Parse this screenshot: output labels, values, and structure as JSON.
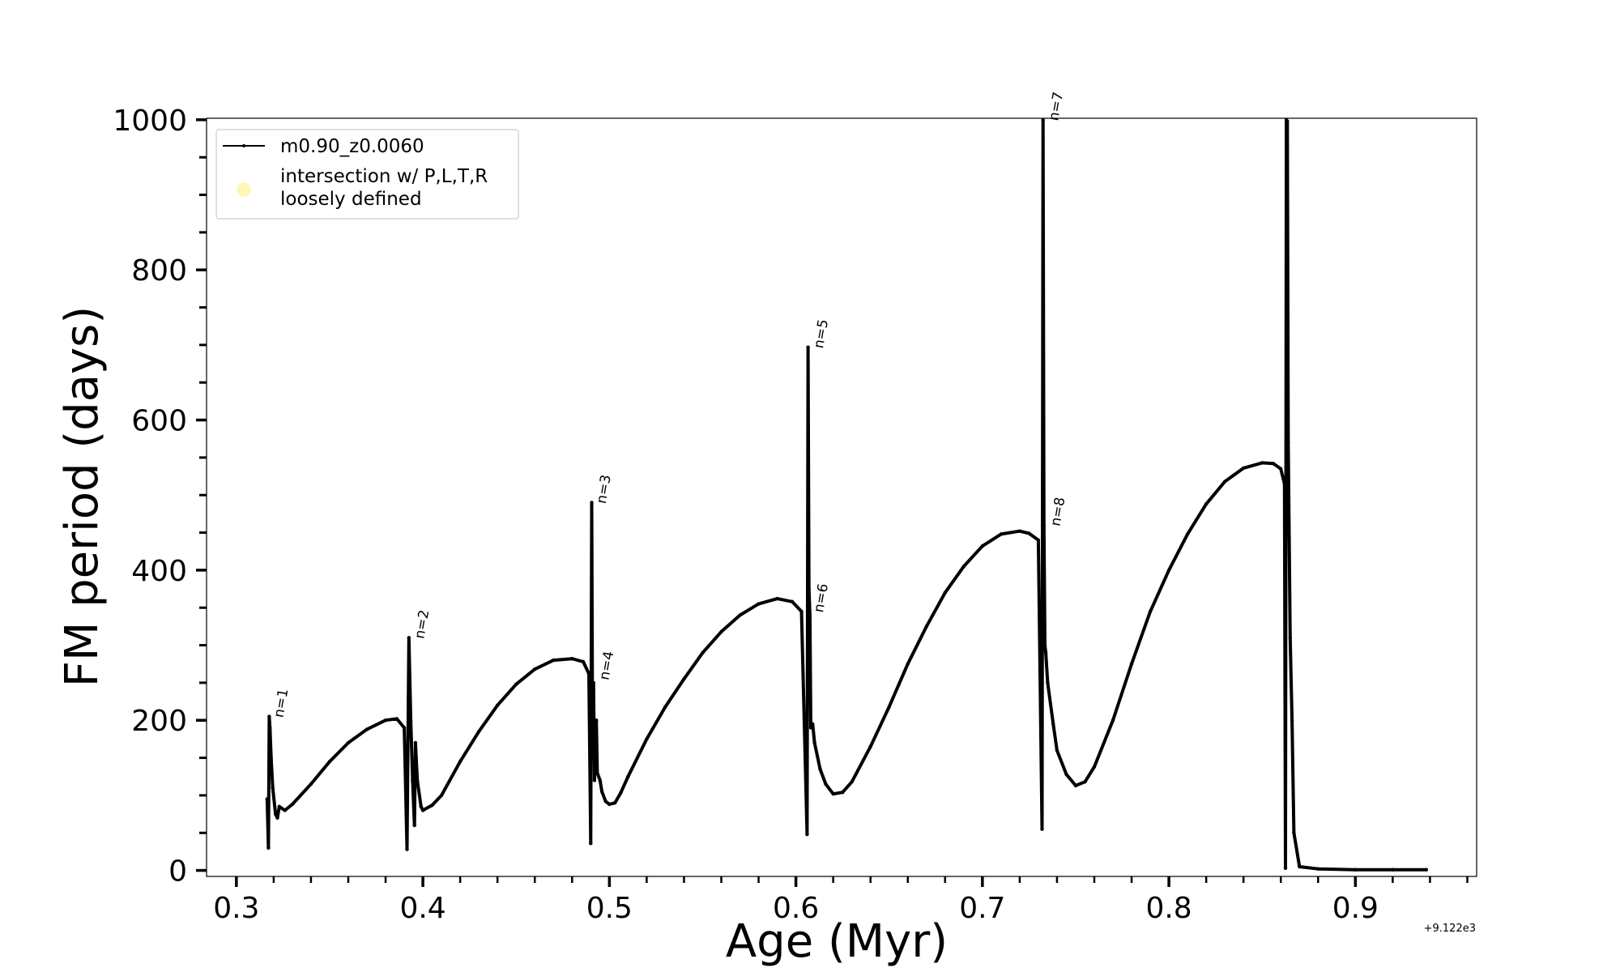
{
  "chart_data": {
    "type": "line",
    "xlabel": "Age (Myr)",
    "ylabel": "FM period (days)",
    "x_offset_label": "+9.122e3",
    "xlim": [
      0.284,
      0.965
    ],
    "ylim": [
      -8,
      1002
    ],
    "x_ticks": [
      0.3,
      0.4,
      0.5,
      0.6,
      0.7,
      0.8,
      0.9
    ],
    "x_tick_labels": [
      "0.3",
      "0.4",
      "0.5",
      "0.6",
      "0.7",
      "0.8",
      "0.9"
    ],
    "y_ticks": [
      0,
      200,
      400,
      600,
      800,
      1000
    ],
    "y_tick_labels": [
      "0",
      "200",
      "400",
      "600",
      "800",
      "1000"
    ],
    "legend_position": "top-left",
    "legend": [
      {
        "label": "m0.90_z0.0060",
        "marker": "line",
        "color": "#000000"
      },
      {
        "label_lines": [
          "intersection w/ P,L,T,R",
          "loosely defined"
        ],
        "marker": "circle",
        "color": "#fff9b8"
      }
    ],
    "series": [
      {
        "name": "m0.90_z0.0060",
        "color": "#000000",
        "x": [
          0.3165,
          0.3172,
          0.3176,
          0.318,
          0.3186,
          0.3195,
          0.321,
          0.322,
          0.323,
          0.326,
          0.33,
          0.34,
          0.35,
          0.36,
          0.37,
          0.38,
          0.386,
          0.39,
          0.3915,
          0.3925,
          0.3935,
          0.3945,
          0.3955,
          0.396,
          0.397,
          0.399,
          0.4,
          0.405,
          0.41,
          0.42,
          0.43,
          0.44,
          0.45,
          0.46,
          0.47,
          0.48,
          0.486,
          0.489,
          0.49,
          0.4905,
          0.491,
          0.4915,
          0.492,
          0.493,
          0.4935,
          0.495,
          0.496,
          0.498,
          0.5,
          0.503,
          0.506,
          0.51,
          0.52,
          0.53,
          0.54,
          0.55,
          0.56,
          0.57,
          0.58,
          0.59,
          0.598,
          0.603,
          0.606,
          0.6065,
          0.607,
          0.6075,
          0.608,
          0.609,
          0.61,
          0.613,
          0.616,
          0.62,
          0.625,
          0.63,
          0.64,
          0.65,
          0.66,
          0.67,
          0.68,
          0.69,
          0.7,
          0.71,
          0.72,
          0.725,
          0.73,
          0.732,
          0.7325,
          0.733,
          0.7335,
          0.734,
          0.735,
          0.738,
          0.74,
          0.745,
          0.75,
          0.755,
          0.76,
          0.77,
          0.78,
          0.79,
          0.8,
          0.81,
          0.82,
          0.83,
          0.84,
          0.85,
          0.856,
          0.86,
          0.862,
          0.8625,
          0.863,
          0.8635,
          0.864,
          0.865,
          0.866,
          0.867,
          0.87,
          0.88,
          0.9,
          0.92,
          0.938
        ],
        "y": [
          95,
          30,
          205,
          190,
          150,
          110,
          75,
          70,
          85,
          80,
          88,
          115,
          145,
          170,
          188,
          200,
          202,
          190,
          28,
          310,
          200,
          120,
          60,
          170,
          120,
          85,
          80,
          87,
          100,
          145,
          185,
          220,
          248,
          268,
          280,
          282,
          278,
          262,
          36,
          490,
          150,
          250,
          120,
          200,
          130,
          120,
          105,
          92,
          88,
          90,
          103,
          125,
          175,
          218,
          255,
          290,
          318,
          340,
          355,
          362,
          358,
          345,
          48,
          697,
          375,
          340,
          190,
          195,
          170,
          135,
          115,
          102,
          104,
          118,
          165,
          218,
          275,
          325,
          370,
          405,
          432,
          448,
          452,
          449,
          440,
          55,
          1000,
          460,
          300,
          290,
          250,
          195,
          160,
          128,
          113,
          118,
          138,
          200,
          275,
          345,
          400,
          448,
          488,
          518,
          536,
          543,
          542,
          535,
          515,
          3,
          1000,
          998,
          570,
          310,
          200,
          50,
          5,
          2,
          1,
          1,
          1
        ]
      }
    ],
    "annotations": [
      {
        "text": "n=1",
        "x": 0.318,
        "y": 205
      },
      {
        "text": "n=2",
        "x": 0.3935,
        "y": 310
      },
      {
        "text": "n=3",
        "x": 0.491,
        "y": 490
      },
      {
        "text": "n=4",
        "x": 0.4925,
        "y": 255
      },
      {
        "text": "n=5",
        "x": 0.6075,
        "y": 697
      },
      {
        "text": "n=6",
        "x": 0.6075,
        "y": 345
      },
      {
        "text": "n=7",
        "x": 0.7335,
        "y": 1000
      },
      {
        "text": "n=8",
        "x": 0.7345,
        "y": 460
      }
    ]
  }
}
